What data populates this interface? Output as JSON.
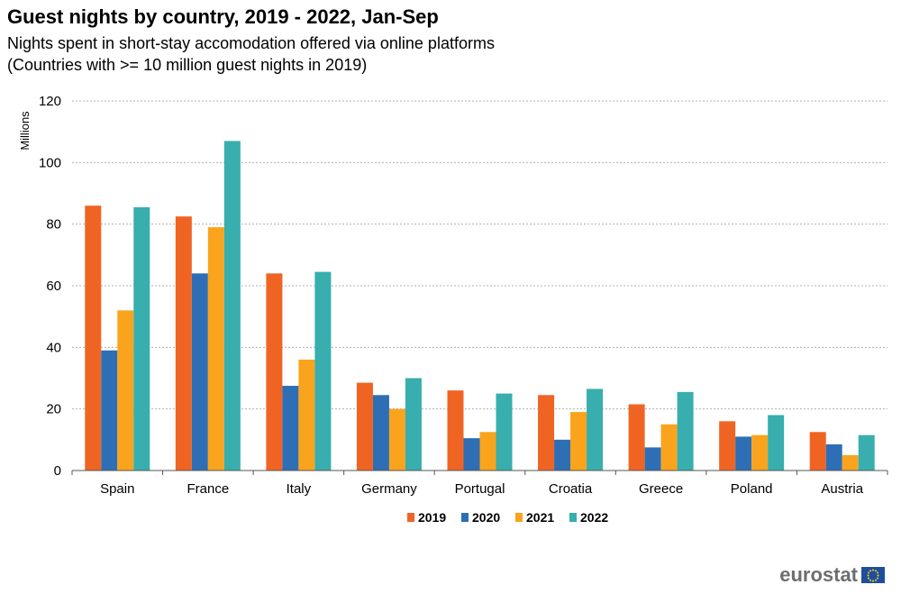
{
  "header": {
    "title": "Guest nights by country, 2019 - 2022, Jan-Sep",
    "subtitle_line1": "Nights spent in short-stay accomodation offered via online platforms",
    "subtitle_line2": "(Countries with >= 10 million guest nights in 2019)"
  },
  "chart_data": {
    "type": "bar",
    "ylabel": "Millions",
    "ylim": [
      0,
      120
    ],
    "yticks": [
      0,
      20,
      40,
      60,
      80,
      100,
      120
    ],
    "grid": true,
    "legend_position": "bottom-center",
    "categories": [
      "Spain",
      "France",
      "Italy",
      "Germany",
      "Portugal",
      "Croatia",
      "Greece",
      "Poland",
      "Austria"
    ],
    "series": [
      {
        "name": "2019",
        "color": "#f06423",
        "values": [
          86,
          82.5,
          64,
          28.5,
          26,
          24.5,
          21.5,
          16,
          12.5
        ]
      },
      {
        "name": "2020",
        "color": "#2e6eb5",
        "values": [
          39,
          64,
          27.5,
          24.5,
          10.5,
          10,
          7.5,
          11,
          8.5
        ]
      },
      {
        "name": "2021",
        "color": "#f9a41c",
        "values": [
          52,
          79,
          36,
          20,
          12.5,
          19,
          15,
          11.5,
          5
        ]
      },
      {
        "name": "2022",
        "color": "#38aeae",
        "values": [
          85.5,
          107,
          64.5,
          30,
          25,
          26.5,
          25.5,
          18,
          11.5
        ]
      }
    ]
  },
  "brand": {
    "logo_text": "eurostat"
  }
}
